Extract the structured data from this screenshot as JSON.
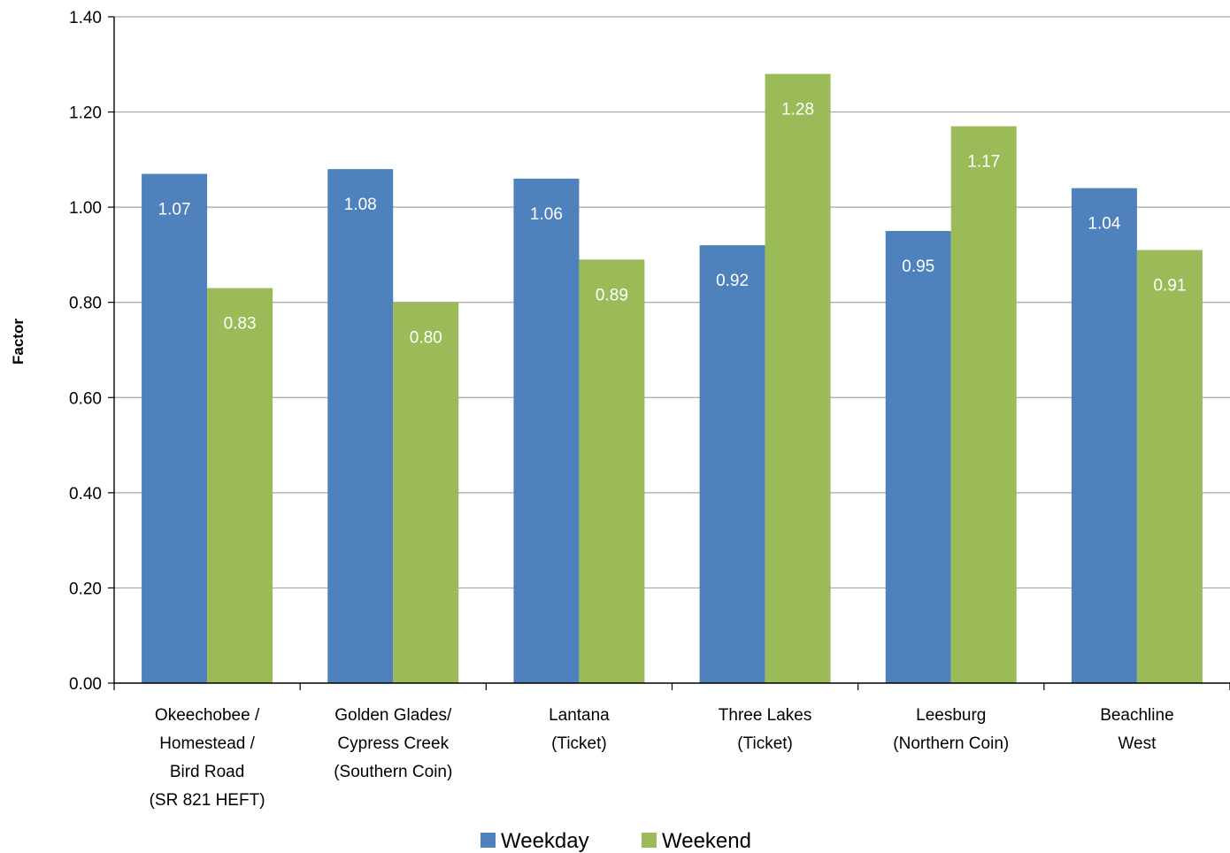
{
  "chart_data": {
    "type": "bar",
    "title": "",
    "xlabel": "",
    "ylabel": "Factor",
    "ylim": [
      0,
      1.4
    ],
    "yticks": [
      0,
      0.2,
      0.4,
      0.6,
      0.8,
      1.0,
      1.2,
      1.4
    ],
    "ytick_labels": [
      "0.00",
      "0.20",
      "0.40",
      "0.60",
      "0.80",
      "1.00",
      "1.20",
      "1.40"
    ],
    "grid": true,
    "legend_position": "bottom",
    "categories": [
      [
        "Okeechobee /",
        "Homestead /",
        "Bird Road",
        "(SR 821 HEFT)"
      ],
      [
        "Golden Glades/",
        "Cypress Creek",
        "(Southern Coin)"
      ],
      [
        "Lantana",
        "(Ticket)"
      ],
      [
        "Three Lakes",
        "(Ticket)"
      ],
      [
        "Leesburg",
        "(Northern Coin)"
      ],
      [
        "Beachline",
        "West"
      ]
    ],
    "series": [
      {
        "name": "Weekday",
        "color": "#4F81BD",
        "values": [
          1.07,
          1.08,
          1.06,
          0.92,
          0.95,
          1.04
        ],
        "labels": [
          "1.07",
          "1.08",
          "1.06",
          "0.92",
          "0.95",
          "1.04"
        ]
      },
      {
        "name": "Weekend",
        "color": "#9BBB59",
        "values": [
          0.83,
          0.8,
          0.89,
          1.28,
          1.17,
          0.91
        ],
        "labels": [
          "0.83",
          "0.80",
          "0.89",
          "1.28",
          "1.17",
          "0.91"
        ]
      }
    ]
  }
}
